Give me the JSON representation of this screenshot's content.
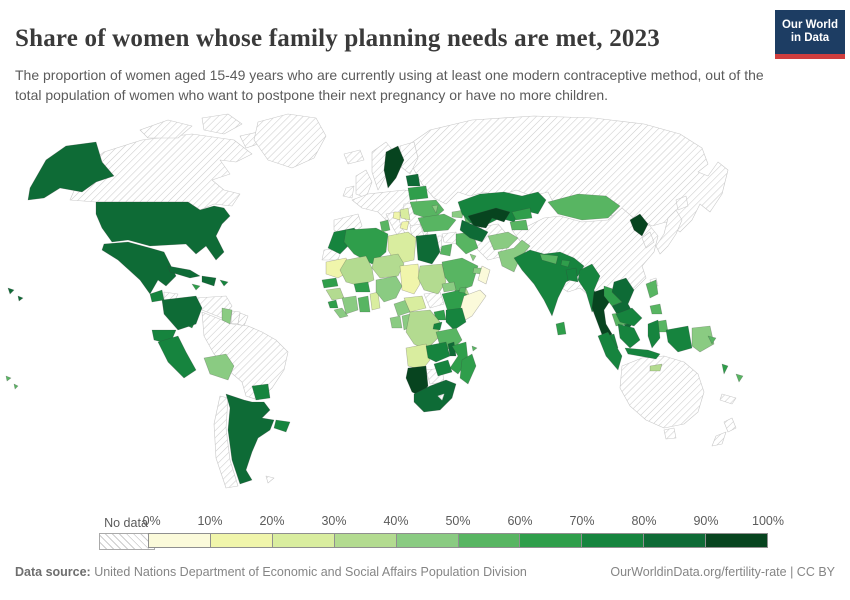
{
  "header": {
    "title": "Share of women whose family planning needs are met, 2023",
    "subtitle": "The proportion of women aged 15-49 years who are currently using at least one modern contraceptive method, out of the total population of women who want to postpone their next pregnancy or have no more children.",
    "logo": {
      "line1": "Our World",
      "line2": "in Data",
      "bg_color": "#1d3d63",
      "accent_color": "#cf3e3e"
    }
  },
  "footer": {
    "source_label": "Data source:",
    "source_text": " United Nations Department of Economic and Social Affairs Population Division",
    "link": "OurWorldinData.org/fertility-rate",
    "separator": " | ",
    "license": "CC BY"
  },
  "chart_data": {
    "type": "choropleth_map",
    "title": "Share of women whose family planning needs are met, 2023",
    "unit": "% of women aged 15-49 with family planning needs met",
    "year": "2023",
    "legend_position": "bottom",
    "legend": {
      "no_data_label": "No data",
      "tick_labels": [
        "0%",
        "10%",
        "20%",
        "30%",
        "40%",
        "50%",
        "60%",
        "70%",
        "80%",
        "90%",
        "100%"
      ],
      "bins": [
        {
          "range": "0-10%",
          "color": "#fbfada"
        },
        {
          "range": "10-20%",
          "color": "#f0f5ab"
        },
        {
          "range": "20-30%",
          "color": "#d9ed9f"
        },
        {
          "range": "30-40%",
          "color": "#b3db90"
        },
        {
          "range": "40-50%",
          "color": "#8acb82"
        },
        {
          "range": "50-60%",
          "color": "#58b562"
        },
        {
          "range": "60-70%",
          "color": "#2f9e4b"
        },
        {
          "range": "70-80%",
          "color": "#16843e"
        },
        {
          "range": "80-90%",
          "color": "#0e6b36"
        },
        {
          "range": "90-100%",
          "color": "#07441f"
        }
      ],
      "no_data_border": "#c9c9c9",
      "country_border": "rgba(60,60,60,0.35)"
    },
    "regions": {
      "canada": "no-data",
      "greenland": "no-data",
      "iceland": "no-data",
      "united-states": "80-90%",
      "mexico": "80-90%",
      "guatemala": "70-80%",
      "honduras": "no-data",
      "nicaragua": "80-90%",
      "costa-rica-panama": "70-80%",
      "cuba": "80-90%",
      "hispaniola": "80-90%",
      "jamaica": "60-70%",
      "puerto-rico": "70-80%",
      "pacific-islands-west": "50-60%",
      "colombia": "80-90%",
      "venezuela": "no-data",
      "guyana": "40-50%",
      "suriname": "no-data",
      "french-guiana": "no-data",
      "ecuador": "70-80%",
      "peru": "70-80%",
      "brazil": "no-data",
      "bolivia": "40-50%",
      "paraguay": "70-80%",
      "uruguay": "70-80%",
      "argentina": "80-90%",
      "chile": "no-data",
      "falkland-islands": "no-data",
      "united-kingdom": "no-data",
      "ireland": "no-data",
      "norway": "no-data",
      "sweden": "90-100%",
      "finland": "no-data",
      "estonia-latvia": "80-90%",
      "europe-west": "no-data",
      "iberia": "no-data",
      "italy": "no-data",
      "balkans": "no-data",
      "greece": "no-data",
      "serbia": "20-30%",
      "bosnia": "10-20%",
      "macedonia-albania": "10-20%",
      "belarus": "60-70%",
      "ukraine": "50-60%",
      "moldova": "40-50%",
      "russia": "no-data",
      "georgia": "40-50%",
      "azerbaijan": "50-60%",
      "kazakhstan": "70-80%",
      "uzbekistan": "90-100%",
      "turkmenistan": "80-90%",
      "kyrgyzstan": "60-70%",
      "tajikistan": "50-60%",
      "mongolia": "50-60%",
      "china": "no-data",
      "taiwan": "no-data",
      "north-korea": "90-100%",
      "south-korea": "no-data",
      "japan": "no-data",
      "afghanistan": "40-50%",
      "pakistan": "40-50%",
      "india": "70-80%",
      "nepal": "50-60%",
      "bhutan": "60-70%",
      "bangladesh": "70-80%",
      "sri-lanka": "60-70%",
      "myanmar": "70-80%",
      "thailand": "90-100%",
      "laos": "60-70%",
      "vietnam": "80-90%",
      "cambodia": "50-60%",
      "malaysia": "70-80%",
      "philippines": "50-60%",
      "indonesia": "70-80%",
      "papua-new-guinea": "40-50%",
      "timor-leste": "30-40%",
      "solomon-islands": "50-60%",
      "vanuatu": "60-70%",
      "fiji": "50-60%",
      "new-caledonia": "no-data",
      "australia": "no-data",
      "new-zealand": "no-data",
      "turkey": "50-60%",
      "syria": "no-data",
      "lebanon-israel": "no-data",
      "jordan": "50-60%",
      "iraq": "50-60%",
      "iran": "no-data",
      "saudi-arabia": "50-60%",
      "kuwait": "40-50%",
      "united-arab-emirates": "40-50%",
      "oman": "0-10%",
      "yemen": "30-40%",
      "morocco": "70-80%",
      "western-sahara": "no-data",
      "algeria": "60-70%",
      "tunisia": "50-60%",
      "libya": "20-30%",
      "egypt": "80-90%",
      "mauritania": "10-20%",
      "senegal": "60-70%",
      "guinea": "30-40%",
      "sierra-leone": "60-70%",
      "liberia": "40-50%",
      "mali": "30-40%",
      "burkina-faso": "60-70%",
      "cote-divoire": "40-50%",
      "ghana": "50-60%",
      "togo-benin": "20-30%",
      "niger": "30-40%",
      "nigeria": "40-50%",
      "chad": "10-20%",
      "sudan": "30-40%",
      "eritrea": "40-50%",
      "ethiopia": "60-70%",
      "djibouti": "50-60%",
      "somalia": "0-10%",
      "south-sudan": "no-data",
      "central-african-republic": "20-30%",
      "cameroon": "40-50%",
      "gabon": "40-50%",
      "congo": "40-50%",
      "dr-congo": "30-40%",
      "uganda": "60-70%",
      "kenya": "70-80%",
      "rwanda-burundi": "70-80%",
      "tanzania": "50-60%",
      "angola": "20-30%",
      "zambia": "70-80%",
      "malawi": "80-90%",
      "mozambique": "60-70%",
      "zimbabwe": "70-80%",
      "botswana": "no-data",
      "namibia": "90-100%",
      "south-africa": "80-90%",
      "lesotho": "no-data",
      "madagascar": "60-70%",
      "comoros": "50-60%"
    }
  }
}
